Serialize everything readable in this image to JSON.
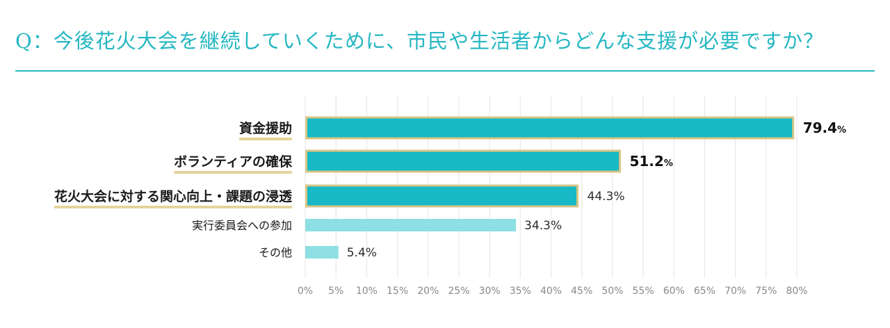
{
  "chart_data": {
    "type": "bar",
    "orientation": "horizontal",
    "title": "Q：今後花火大会を継続していくために、市民や生活者からどんな支援が必要ですか？",
    "categories": [
      "資金援助",
      "ボランティアの確保",
      "花火大会に対する関心向上・課題の浸透",
      "実行委員会への参加",
      "その他"
    ],
    "values": [
      79.4,
      51.2,
      44.3,
      34.3,
      5.4
    ],
    "value_labels": [
      "79.4",
      "51.2",
      "44.3%",
      "34.3%",
      "5.4%"
    ],
    "value_label_unit": "%",
    "highlighted": [
      true,
      true,
      true,
      false,
      false
    ],
    "xlim": [
      0,
      80
    ],
    "xticks": [
      "0%",
      "5%",
      "10%",
      "15%",
      "20%",
      "25%",
      "30%",
      "35%",
      "40%",
      "45%",
      "50%",
      "55%",
      "60%",
      "65%",
      "70%",
      "75%",
      "80%"
    ],
    "grid": true,
    "colors": {
      "title": "#26b7c2",
      "bar_highlight": "#16b9c5",
      "bar_normal": "#8ddfe3",
      "bar_border": "#d6c585",
      "label_underline": "#e3d49b",
      "grid": "#e8e8e8",
      "tick": "#888888",
      "text": "#1a1a1a"
    }
  }
}
